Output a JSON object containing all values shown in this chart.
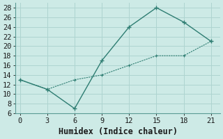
{
  "xlabel": "Humidex (Indice chaleur)",
  "line1_x": [
    0,
    3,
    6,
    9,
    12,
    15,
    18,
    21
  ],
  "line1_y": [
    13,
    11,
    7,
    17,
    24,
    28,
    25,
    21
  ],
  "line2_x": [
    0,
    3,
    6,
    9,
    12,
    15,
    18,
    21
  ],
  "line2_y": [
    13,
    11,
    13,
    14,
    16,
    18,
    18,
    21
  ],
  "line_color": "#2e7d72",
  "bg_color": "#cdeae6",
  "grid_color": "#aed4d0",
  "xlim": [
    -0.5,
    22
  ],
  "ylim": [
    6,
    29
  ],
  "xticks": [
    0,
    3,
    6,
    9,
    12,
    15,
    18,
    21
  ],
  "yticks": [
    6,
    8,
    10,
    12,
    14,
    16,
    18,
    20,
    22,
    24,
    26,
    28
  ],
  "tick_fontsize": 7.5,
  "label_fontsize": 8.5
}
